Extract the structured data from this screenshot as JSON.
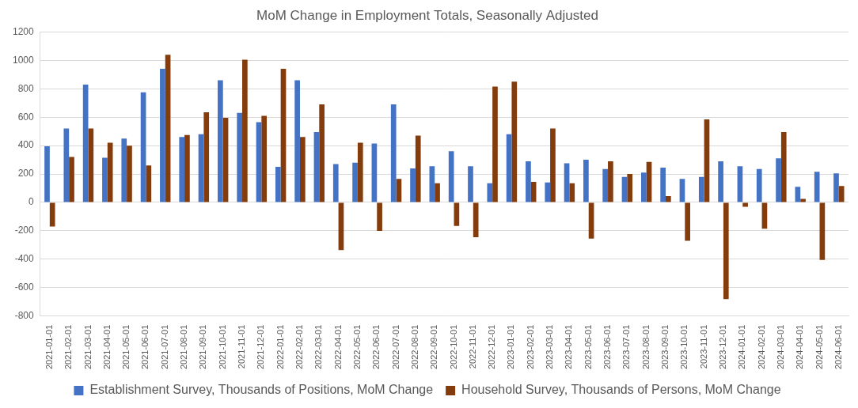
{
  "chart_data": {
    "type": "bar",
    "title": "MoM Change in Employment Totals, Seasonally Adjusted",
    "categories": [
      "2021-01-01",
      "2021-02-01",
      "2021-03-01",
      "2021-04-01",
      "2021-05-01",
      "2021-06-01",
      "2021-07-01",
      "2021-08-01",
      "2021-09-01",
      "2021-10-01",
      "2021-11-01",
      "2021-12-01",
      "2022-01-01",
      "2022-02-01",
      "2022-03-01",
      "2022-04-01",
      "2022-05-01",
      "2022-06-01",
      "2022-07-01",
      "2022-08-01",
      "2022-09-01",
      "2022-10-01",
      "2022-11-01",
      "2022-12-01",
      "2023-01-01",
      "2023-02-01",
      "2023-03-01",
      "2023-04-01",
      "2023-05-01",
      "2023-06-01",
      "2023-07-01",
      "2023-08-01",
      "2023-09-01",
      "2023-10-01",
      "2023-11-01",
      "2023-12-01",
      "2024-01-01",
      "2024-02-01",
      "2024-03-01",
      "2024-04-01",
      "2024-05-01",
      "2024-06-01"
    ],
    "series": [
      {
        "name": "Establishment Survey, Thousands of Positions, MoM Change",
        "color": "#4472c4",
        "values": [
          395,
          520,
          830,
          315,
          450,
          775,
          940,
          460,
          480,
          860,
          630,
          565,
          250,
          860,
          495,
          270,
          280,
          415,
          690,
          240,
          255,
          360,
          255,
          135,
          480,
          290,
          140,
          275,
          300,
          235,
          180,
          210,
          245,
          165,
          180,
          290,
          255,
          235,
          310,
          110,
          215,
          205
        ]
      },
      {
        "name": "Household Survey, Thousands of Persons, MoM Change",
        "color": "#843c0c",
        "values": [
          -170,
          320,
          520,
          420,
          400,
          260,
          1040,
          475,
          635,
          595,
          1005,
          610,
          940,
          460,
          690,
          -335,
          420,
          -200,
          165,
          470,
          135,
          -165,
          -245,
          815,
          850,
          145,
          520,
          135,
          -255,
          290,
          200,
          285,
          45,
          -270,
          585,
          -680,
          -30,
          -185,
          495,
          25,
          -405,
          115
        ]
      }
    ],
    "ylim": [
      -800,
      1200
    ],
    "yticks": [
      -800,
      -600,
      -400,
      -200,
      0,
      200,
      400,
      600,
      800,
      1000,
      1200
    ],
    "grid": true,
    "legend": "bottom"
  }
}
